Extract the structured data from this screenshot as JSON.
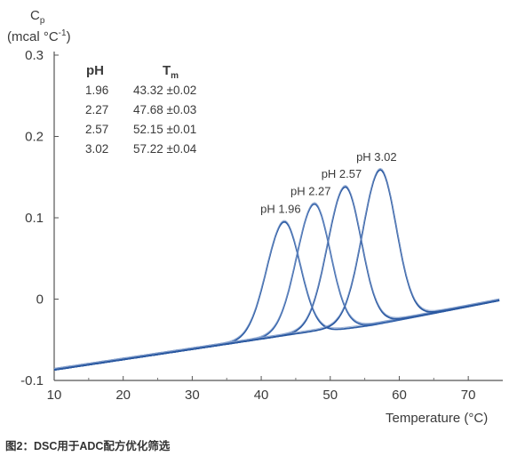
{
  "chart_data": {
    "type": "line",
    "ylabel_symbol": "C",
    "ylabel_subscript": "p",
    "ylabel_unit": "(mcal °C",
    "ylabel_unit_sup": "-1",
    "ylabel_unit_close": ")",
    "xlabel": "Temperature (°C)",
    "xlim": [
      10,
      75
    ],
    "ylim": [
      -0.1,
      0.3
    ],
    "xticks": [
      10,
      20,
      30,
      40,
      50,
      60,
      70
    ],
    "yticks": [
      -0.1,
      0,
      0.1,
      0.2,
      0.3
    ],
    "ytick_labels": [
      "-0.1",
      "0",
      "0.1",
      "0.2",
      "0.3"
    ],
    "grid": false,
    "line_color": "#2e5ea8",
    "table": {
      "header_ph": "pH",
      "header_tm": "T",
      "header_tm_sub": "m",
      "rows": [
        {
          "ph": "1.96",
          "tm": "43.32 ±0.02"
        },
        {
          "ph": "2.27",
          "tm": "47.68 ±0.03"
        },
        {
          "ph": "2.57",
          "tm": "52.15 ±0.01"
        },
        {
          "ph": "3.02",
          "tm": "57.22 ±0.04"
        }
      ]
    },
    "series": [
      {
        "name": "pH 1.96",
        "peak_x": 43.32,
        "peak_y": 0.095
      },
      {
        "name": "pH 2.27",
        "peak_x": 47.68,
        "peak_y": 0.117
      },
      {
        "name": "pH 2.57",
        "peak_x": 52.15,
        "peak_y": 0.138
      },
      {
        "name": "pH 3.02",
        "peak_x": 57.22,
        "peak_y": 0.159
      }
    ]
  },
  "caption": "图2：DSC用于ADC配方优化筛选"
}
